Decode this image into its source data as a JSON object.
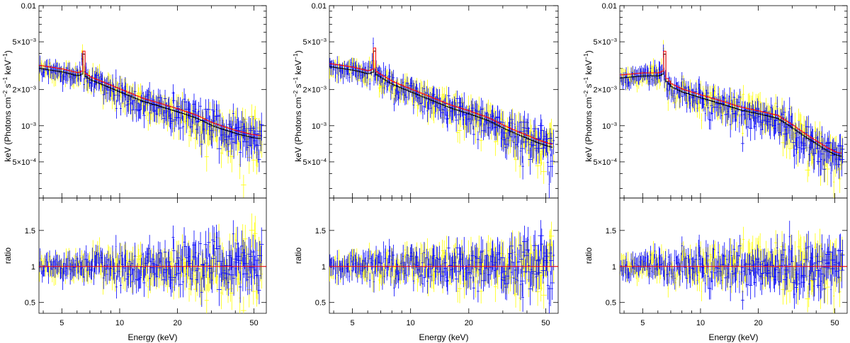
{
  "chart_data": [
    {
      "type": "scatter",
      "panel": "left",
      "xlabel": "Energy (keV)",
      "ylabel_top": "keV (Photons cm⁻² s⁻¹ keV⁻¹)",
      "ylabel_bottom": "ratio",
      "xscale": "log",
      "yscale_top": "log",
      "xlim": [
        3.8,
        58
      ],
      "ylim_top": [
        0.00025,
        0.01
      ],
      "ylim_bottom": [
        0.35,
        1.95
      ],
      "x_ticks": [
        "5",
        "10",
        "20",
        "50"
      ],
      "y_ticks_top": [
        "0.01",
        "5×10⁻³",
        "2×10⁻³",
        "10⁻³",
        "5×10⁻⁴"
      ],
      "y_ticks_bottom": [
        "0.5",
        "1",
        "1.5"
      ],
      "model": {
        "x": [
          3.8,
          5,
          6,
          6.3,
          6.4,
          6.5,
          7,
          8,
          10,
          13,
          16,
          20,
          25,
          30,
          35,
          40,
          45,
          50,
          55
        ],
        "y": [
          0.003,
          0.0028,
          0.0026,
          0.0027,
          0.0045,
          0.0026,
          0.0024,
          0.0022,
          0.0019,
          0.0016,
          0.00145,
          0.0013,
          0.00115,
          0.001,
          0.00092,
          0.00086,
          0.00082,
          0.00079,
          0.00078
        ]
      },
      "ratio_line": 1.0,
      "colors": {
        "fpma": "#0000ff",
        "fpmb": "#ffff00",
        "model_a": "#000000",
        "model_b": "#ff0000"
      }
    },
    {
      "type": "scatter",
      "panel": "middle",
      "xlabel": "Energy (keV)",
      "ylabel_top": "keV (Photons cm⁻² s⁻¹ keV⁻¹)",
      "ylabel_bottom": "ratio",
      "xscale": "log",
      "yscale_top": "log",
      "xlim": [
        3.8,
        58
      ],
      "ylim_top": [
        0.00025,
        0.01
      ],
      "ylim_bottom": [
        0.35,
        1.95
      ],
      "x_ticks": [
        "5",
        "10",
        "20",
        "50"
      ],
      "y_ticks_top": [
        "0.01",
        "5×10⁻³",
        "2×10⁻³",
        "10⁻³",
        "5×10⁻⁴"
      ],
      "y_ticks_bottom": [
        "0.5",
        "1",
        "1.5"
      ],
      "model": {
        "x": [
          3.8,
          5,
          6,
          6.3,
          6.4,
          6.5,
          7,
          8,
          10,
          13,
          16,
          20,
          25,
          30,
          35,
          40,
          45,
          50,
          55
        ],
        "y": [
          0.0031,
          0.0029,
          0.0027,
          0.0028,
          0.0048,
          0.0027,
          0.0025,
          0.0022,
          0.0019,
          0.0016,
          0.0014,
          0.00125,
          0.0011,
          0.00095,
          0.00085,
          0.00078,
          0.00072,
          0.00068,
          0.00065
        ]
      },
      "ratio_line": 1.0,
      "colors": {
        "fpma": "#0000ff",
        "fpmb": "#ffff00",
        "model_a": "#000000",
        "model_b": "#ff0000"
      }
    },
    {
      "type": "scatter",
      "panel": "right",
      "xlabel": "Energy (keV)",
      "ylabel_top": "keV (Photons cm⁻² s⁻¹ keV⁻¹)",
      "ylabel_bottom": "ratio",
      "xscale": "log",
      "yscale_top": "log",
      "xlim": [
        3.8,
        58
      ],
      "ylim_top": [
        0.00025,
        0.01
      ],
      "ylim_bottom": [
        0.35,
        1.95
      ],
      "x_ticks": [
        "5",
        "10",
        "20",
        "50"
      ],
      "y_ticks_top": [
        "0.01",
        "5×10⁻³",
        "2×10⁻³",
        "10⁻³",
        "5×10⁻⁴"
      ],
      "y_ticks_bottom": [
        "0.5",
        "1",
        "1.5"
      ],
      "model": {
        "x": [
          3.8,
          5,
          6,
          6.3,
          6.4,
          6.5,
          7,
          8,
          10,
          13,
          16,
          20,
          25,
          30,
          35,
          40,
          45,
          50,
          55
        ],
        "y": [
          0.0025,
          0.0026,
          0.0026,
          0.0027,
          0.0046,
          0.0024,
          0.0021,
          0.0019,
          0.0017,
          0.0015,
          0.00135,
          0.00125,
          0.00115,
          0.00095,
          0.0008,
          0.0007,
          0.00062,
          0.00057,
          0.00055
        ]
      },
      "ratio_line": 1.0,
      "colors": {
        "fpma": "#0000ff",
        "fpmb": "#ffff00",
        "model_a": "#000000",
        "model_b": "#ff0000"
      }
    }
  ]
}
